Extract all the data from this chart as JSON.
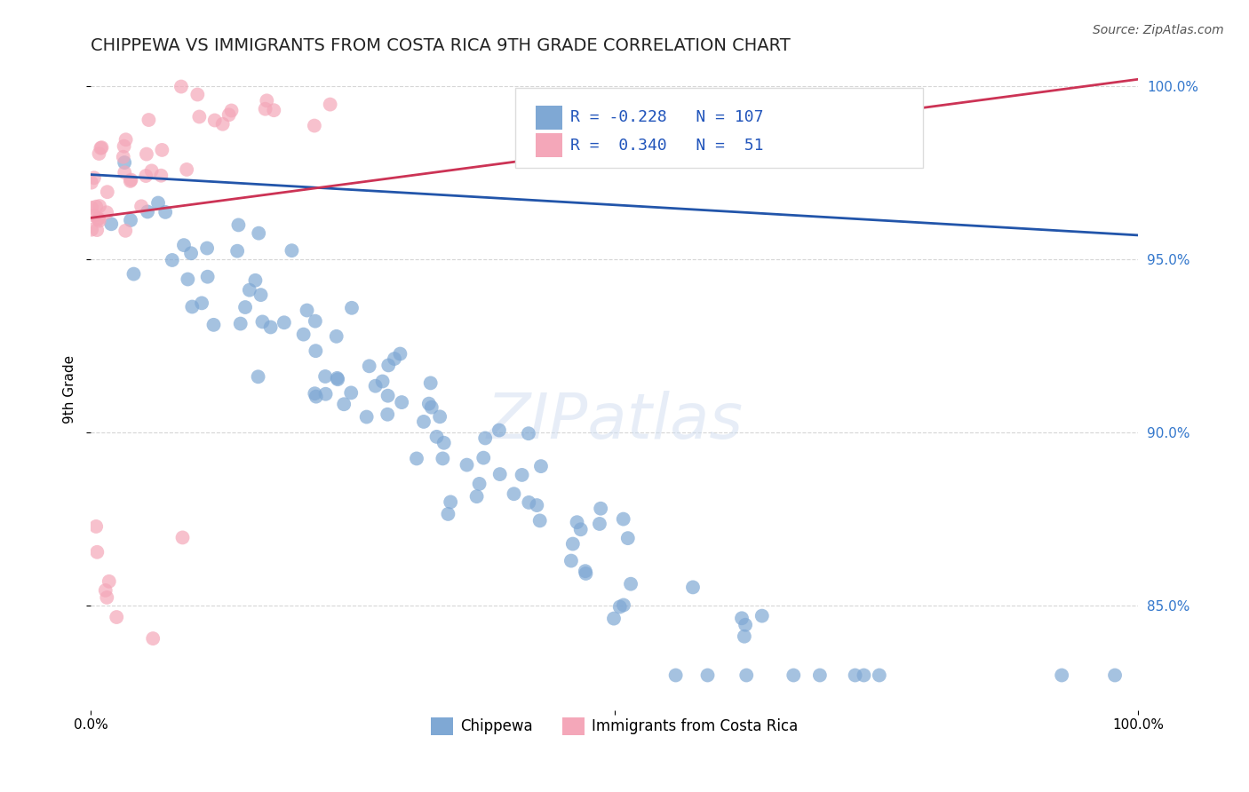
{
  "title": "CHIPPEWA VS IMMIGRANTS FROM COSTA RICA 9TH GRADE CORRELATION CHART",
  "source_text": "Source: ZipAtlas.com",
  "xlabel": "",
  "ylabel": "9th Grade",
  "xlim": [
    0.0,
    1.0
  ],
  "ylim": [
    0.82,
    1.005
  ],
  "x_ticks": [
    0.0,
    1.0
  ],
  "x_tick_labels": [
    "0.0%",
    "100.0%"
  ],
  "y_tick_right_labels": [
    "85.0%",
    "90.0%",
    "95.0%",
    "100.0%"
  ],
  "y_tick_right_values": [
    0.85,
    0.9,
    0.95,
    1.0
  ],
  "background_color": "#ffffff",
  "blue_color": "#7fa8d4",
  "pink_color": "#f4a7b9",
  "blue_line_color": "#2255aa",
  "pink_line_color": "#cc3355",
  "legend_blue_label": "Chippewa",
  "legend_pink_label": "Immigrants from Costa Rica",
  "R_blue": -0.228,
  "N_blue": 107,
  "R_pink": 0.34,
  "N_pink": 51,
  "watermark": "ZIPatlas",
  "title_fontsize": 14,
  "axis_label_fontsize": 11,
  "legend_fontsize": 13
}
